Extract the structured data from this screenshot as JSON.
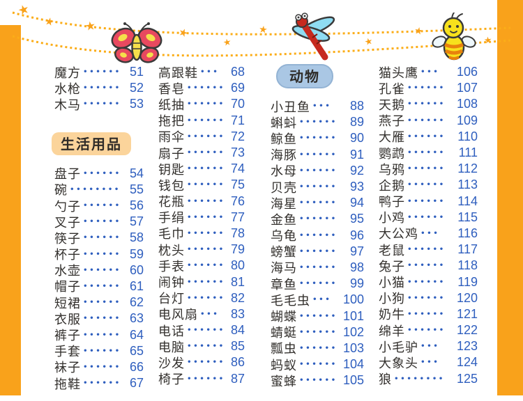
{
  "colors": {
    "border_orange": "#F9A21B",
    "garland_orange": "#FBAD18",
    "number_blue": "#2E5EBE",
    "text_dark": "#33302d",
    "section_daily_bg": "#FBD49B",
    "section_animal_bg": "#AAC7E4"
  },
  "decorations": {
    "butterfly": "butterfly-illustration",
    "dragonfly": "dragonfly-illustration",
    "bee": "bee-illustration",
    "garland": "dotted-star-garland"
  },
  "sections": {
    "daily_necessities": "生活用品",
    "animals": "动物"
  },
  "columns": [
    {
      "items": [
        {
          "type": "entry",
          "label": "魔方",
          "page": "51"
        },
        {
          "type": "entry",
          "label": "水枪",
          "page": "52"
        },
        {
          "type": "entry",
          "label": "木马",
          "page": "53"
        },
        {
          "type": "section",
          "label": "生活用品",
          "theme": "peach"
        },
        {
          "type": "entry",
          "label": "盘子",
          "page": "54"
        },
        {
          "type": "entry",
          "label": "碗",
          "page": "55"
        },
        {
          "type": "entry",
          "label": "勺子",
          "page": "56"
        },
        {
          "type": "entry",
          "label": "叉子",
          "page": "57"
        },
        {
          "type": "entry",
          "label": "筷子",
          "page": "58"
        },
        {
          "type": "entry",
          "label": "杯子",
          "page": "59"
        },
        {
          "type": "entry",
          "label": "水壶",
          "page": "60"
        },
        {
          "type": "entry",
          "label": "帽子",
          "page": "61"
        },
        {
          "type": "entry",
          "label": "短裙",
          "page": "62"
        },
        {
          "type": "entry",
          "label": "衣服",
          "page": "63"
        },
        {
          "type": "entry",
          "label": "裤子",
          "page": "64"
        },
        {
          "type": "entry",
          "label": "手套",
          "page": "65"
        },
        {
          "type": "entry",
          "label": "袜子",
          "page": "66"
        },
        {
          "type": "entry",
          "label": "拖鞋",
          "page": "67"
        }
      ]
    },
    {
      "items": [
        {
          "type": "entry",
          "label": "高跟鞋",
          "page": "68"
        },
        {
          "type": "entry",
          "label": "香皂",
          "page": "69"
        },
        {
          "type": "entry",
          "label": "纸抽",
          "page": "70"
        },
        {
          "type": "entry",
          "label": "拖把",
          "page": "71"
        },
        {
          "type": "entry",
          "label": "雨伞",
          "page": "72"
        },
        {
          "type": "entry",
          "label": "扇子",
          "page": "73"
        },
        {
          "type": "entry",
          "label": "钥匙",
          "page": "74"
        },
        {
          "type": "entry",
          "label": "钱包",
          "page": "75"
        },
        {
          "type": "entry",
          "label": "花瓶",
          "page": "76"
        },
        {
          "type": "entry",
          "label": "手绢",
          "page": "77"
        },
        {
          "type": "entry",
          "label": "毛巾",
          "page": "78"
        },
        {
          "type": "entry",
          "label": "枕头",
          "page": "79"
        },
        {
          "type": "entry",
          "label": "手表",
          "page": "80"
        },
        {
          "type": "entry",
          "label": "闹钟",
          "page": "81"
        },
        {
          "type": "entry",
          "label": "台灯",
          "page": "82"
        },
        {
          "type": "entry",
          "label": "电风扇",
          "page": "83"
        },
        {
          "type": "entry",
          "label": "电话",
          "page": "84"
        },
        {
          "type": "entry",
          "label": "电脑",
          "page": "85"
        },
        {
          "type": "entry",
          "label": "沙发",
          "page": "86"
        },
        {
          "type": "entry",
          "label": "椅子",
          "page": "87"
        }
      ]
    },
    {
      "items": [
        {
          "type": "section",
          "label": "动物",
          "theme": "blue"
        },
        {
          "type": "entry",
          "label": "小丑鱼",
          "page": "88"
        },
        {
          "type": "entry",
          "label": "蝌蚪",
          "page": "89"
        },
        {
          "type": "entry",
          "label": "鲸鱼",
          "page": "90"
        },
        {
          "type": "entry",
          "label": "海豚",
          "page": "91"
        },
        {
          "type": "entry",
          "label": "水母",
          "page": "92"
        },
        {
          "type": "entry",
          "label": "贝壳",
          "page": "93"
        },
        {
          "type": "entry",
          "label": "海星",
          "page": "94"
        },
        {
          "type": "entry",
          "label": "金鱼",
          "page": "95"
        },
        {
          "type": "entry",
          "label": "乌龟",
          "page": "96"
        },
        {
          "type": "entry",
          "label": "螃蟹",
          "page": "97"
        },
        {
          "type": "entry",
          "label": "海马",
          "page": "98"
        },
        {
          "type": "entry",
          "label": "章鱼",
          "page": "99"
        },
        {
          "type": "entry",
          "label": "毛毛虫",
          "page": "100"
        },
        {
          "type": "entry",
          "label": "蝴蝶",
          "page": "101"
        },
        {
          "type": "entry",
          "label": "蜻蜓",
          "page": "102"
        },
        {
          "type": "entry",
          "label": "瓢虫",
          "page": "103"
        },
        {
          "type": "entry",
          "label": "蚂蚁",
          "page": "104"
        },
        {
          "type": "entry",
          "label": "蜜蜂",
          "page": "105"
        }
      ]
    },
    {
      "items": [
        {
          "type": "entry",
          "label": "猫头鹰",
          "page": "106"
        },
        {
          "type": "entry",
          "label": "孔雀",
          "page": "107"
        },
        {
          "type": "entry",
          "label": "天鹅",
          "page": "108"
        },
        {
          "type": "entry",
          "label": "燕子",
          "page": "109"
        },
        {
          "type": "entry",
          "label": "大雁",
          "page": "110"
        },
        {
          "type": "entry",
          "label": "鹦鹉",
          "page": "111"
        },
        {
          "type": "entry",
          "label": "乌鸦",
          "page": "112"
        },
        {
          "type": "entry",
          "label": "企鹅",
          "page": "113"
        },
        {
          "type": "entry",
          "label": "鸭子",
          "page": "114"
        },
        {
          "type": "entry",
          "label": "小鸡",
          "page": "115"
        },
        {
          "type": "entry",
          "label": "大公鸡",
          "page": "116"
        },
        {
          "type": "entry",
          "label": "老鼠",
          "page": "117"
        },
        {
          "type": "entry",
          "label": "兔子",
          "page": "118"
        },
        {
          "type": "entry",
          "label": "小猫",
          "page": "119"
        },
        {
          "type": "entry",
          "label": "小狗",
          "page": "120"
        },
        {
          "type": "entry",
          "label": "奶牛",
          "page": "121"
        },
        {
          "type": "entry",
          "label": "绵羊",
          "page": "122"
        },
        {
          "type": "entry",
          "label": "小毛驴",
          "page": "123"
        },
        {
          "type": "entry",
          "label": "大象头",
          "page": "124"
        },
        {
          "type": "entry",
          "label": "狼",
          "page": "125"
        }
      ]
    }
  ]
}
